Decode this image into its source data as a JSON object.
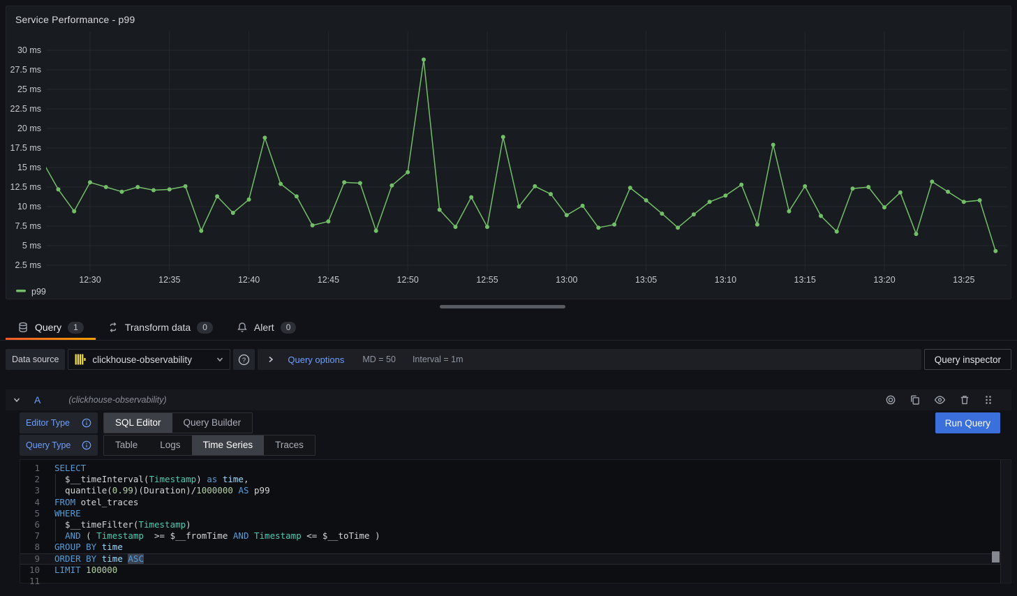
{
  "panel": {
    "title": "Service Performance - p99"
  },
  "chart_data": {
    "type": "line",
    "title": "Service Performance - p99",
    "unit": "ms",
    "grid": true,
    "legend_position": "bottom-left",
    "y_ticks": [
      30,
      27.5,
      25,
      22.5,
      20,
      17.5,
      15,
      12.5,
      10,
      7.5,
      5,
      2.5
    ],
    "ylim": [
      1.25,
      31.5
    ],
    "x_ticks": [
      "12:30",
      "12:35",
      "12:40",
      "12:45",
      "12:50",
      "12:55",
      "13:00",
      "13:05",
      "13:10",
      "13:15",
      "13:20",
      "13:25"
    ],
    "series": [
      {
        "name": "p99",
        "color": "#73bf69",
        "points": [
          [
            "12:27",
            15.8
          ],
          [
            "12:28",
            12.2
          ],
          [
            "12:29",
            9.4
          ],
          [
            "12:30",
            13.1
          ],
          [
            "12:31",
            12.5
          ],
          [
            "12:32",
            11.9
          ],
          [
            "12:33",
            12.5
          ],
          [
            "12:34",
            12.1
          ],
          [
            "12:35",
            12.2
          ],
          [
            "12:36",
            12.6
          ],
          [
            "12:37",
            6.9
          ],
          [
            "12:38",
            11.3
          ],
          [
            "12:39",
            9.2
          ],
          [
            "12:40",
            10.9
          ],
          [
            "12:41",
            18.8
          ],
          [
            "12:42",
            12.9
          ],
          [
            "12:43",
            11.3
          ],
          [
            "12:44",
            7.6
          ],
          [
            "12:45",
            8.1
          ],
          [
            "12:46",
            13.1
          ],
          [
            "12:47",
            13
          ],
          [
            "12:48",
            6.9
          ],
          [
            "12:49",
            12.7
          ],
          [
            "12:50",
            14.4
          ],
          [
            "12:51",
            28.8
          ],
          [
            "12:52",
            9.6
          ],
          [
            "12:53",
            7.4
          ],
          [
            "12:54",
            11.2
          ],
          [
            "12:55",
            7.4
          ],
          [
            "12:56",
            18.9
          ],
          [
            "12:57",
            10
          ],
          [
            "12:58",
            12.6
          ],
          [
            "12:59",
            11.6
          ],
          [
            "13:00",
            8.9
          ],
          [
            "13:01",
            10.1
          ],
          [
            "13:02",
            7.3
          ],
          [
            "13:03",
            7.7
          ],
          [
            "13:04",
            12.4
          ],
          [
            "13:05",
            10.8
          ],
          [
            "13:06",
            9.1
          ],
          [
            "13:07",
            7.3
          ],
          [
            "13:08",
            9
          ],
          [
            "13:09",
            10.6
          ],
          [
            "13:10",
            11.4
          ],
          [
            "13:11",
            12.8
          ],
          [
            "13:12",
            7.7
          ],
          [
            "13:13",
            17.9
          ],
          [
            "13:14",
            9.4
          ],
          [
            "13:15",
            12.6
          ],
          [
            "13:16",
            8.8
          ],
          [
            "13:17",
            6.8
          ],
          [
            "13:18",
            12.3
          ],
          [
            "13:19",
            12.5
          ],
          [
            "13:20",
            9.9
          ],
          [
            "13:21",
            11.8
          ],
          [
            "13:22",
            6.5
          ],
          [
            "13:23",
            13.2
          ],
          [
            "13:24",
            11.9
          ],
          [
            "13:25",
            10.6
          ],
          [
            "13:26",
            10.8
          ],
          [
            "13:27",
            4.3
          ]
        ]
      }
    ]
  },
  "tabs": [
    {
      "label": "Query",
      "badge": "1",
      "icon": "database-icon",
      "active": true
    },
    {
      "label": "Transform data",
      "badge": "0",
      "icon": "transform-icon",
      "active": false
    },
    {
      "label": "Alert",
      "badge": "0",
      "icon": "bell-icon",
      "active": false
    }
  ],
  "toolbar": {
    "data_source_label": "Data source",
    "data_source_value": "clickhouse-observability",
    "query_options_label": "Query options",
    "query_options_md": "MD = 50",
    "query_options_interval": "Interval = 1m",
    "query_inspector_label": "Query inspector"
  },
  "query_row": {
    "ref_id": "A",
    "datasource_hint": "(clickhouse-observability)",
    "actions": [
      "disable-query-icon",
      "duplicate-query-icon",
      "hide-response-icon",
      "delete-query-icon",
      "drag-handle-icon"
    ]
  },
  "editor": {
    "editor_type_label": "Editor Type",
    "editor_type_options": [
      "SQL Editor",
      "Query Builder"
    ],
    "editor_type_active": "SQL Editor",
    "query_type_label": "Query Type",
    "query_type_options": [
      "Table",
      "Logs",
      "Time Series",
      "Traces"
    ],
    "query_type_active": "Time Series",
    "run_query_label": "Run Query"
  },
  "sql": {
    "lines": [
      {
        "n": 1,
        "indent": false,
        "current": false,
        "tokens": [
          [
            "SELECT",
            "kw"
          ]
        ]
      },
      {
        "n": 2,
        "indent": true,
        "current": false,
        "tokens": [
          [
            "  $__timeInterval(",
            "plain"
          ],
          [
            "Timestamp",
            "type"
          ],
          [
            ") ",
            "plain"
          ],
          [
            "as",
            "kw"
          ],
          [
            " ",
            "plain"
          ],
          [
            "time",
            "var"
          ],
          [
            ",",
            "plain"
          ]
        ]
      },
      {
        "n": 3,
        "indent": true,
        "current": false,
        "tokens": [
          [
            "  quantile(",
            "plain"
          ],
          [
            "0.99",
            "num"
          ],
          [
            ")(Duration)/",
            "plain"
          ],
          [
            "1000000",
            "num"
          ],
          [
            " ",
            "plain"
          ],
          [
            "AS",
            "kw"
          ],
          [
            " p99",
            "plain"
          ]
        ]
      },
      {
        "n": 4,
        "indent": false,
        "current": false,
        "tokens": [
          [
            "FROM",
            "kw"
          ],
          [
            " otel_traces",
            "plain"
          ]
        ]
      },
      {
        "n": 5,
        "indent": false,
        "current": false,
        "tokens": [
          [
            "WHERE",
            "kw"
          ]
        ]
      },
      {
        "n": 6,
        "indent": true,
        "current": false,
        "tokens": [
          [
            "  $__timeFilter(",
            "plain"
          ],
          [
            "Timestamp",
            "type"
          ],
          [
            ")",
            "plain"
          ]
        ]
      },
      {
        "n": 7,
        "indent": true,
        "current": false,
        "tokens": [
          [
            "  ",
            "plain"
          ],
          [
            "AND",
            "kw"
          ],
          [
            " ( ",
            "plain"
          ],
          [
            "Timestamp",
            "type"
          ],
          [
            "  >= $__fromTime ",
            "plain"
          ],
          [
            "AND",
            "kw"
          ],
          [
            " ",
            "plain"
          ],
          [
            "Timestamp",
            "type"
          ],
          [
            " <= $__toTime )",
            "plain"
          ]
        ]
      },
      {
        "n": 8,
        "indent": false,
        "current": false,
        "tokens": [
          [
            "GROUP BY",
            "kw"
          ],
          [
            " ",
            "plain"
          ],
          [
            "time",
            "var"
          ]
        ]
      },
      {
        "n": 9,
        "indent": false,
        "current": true,
        "tokens": [
          [
            "ORDER BY",
            "kw"
          ],
          [
            " ",
            "plain"
          ],
          [
            "time",
            "var"
          ],
          [
            " ",
            "plain"
          ],
          [
            "ASC",
            "kw sel"
          ]
        ]
      },
      {
        "n": 10,
        "indent": false,
        "current": false,
        "tokens": [
          [
            "LIMIT",
            "kw"
          ],
          [
            " ",
            "plain"
          ],
          [
            "100000",
            "num"
          ]
        ]
      },
      {
        "n": 11,
        "indent": false,
        "current": false,
        "tokens": []
      }
    ]
  }
}
